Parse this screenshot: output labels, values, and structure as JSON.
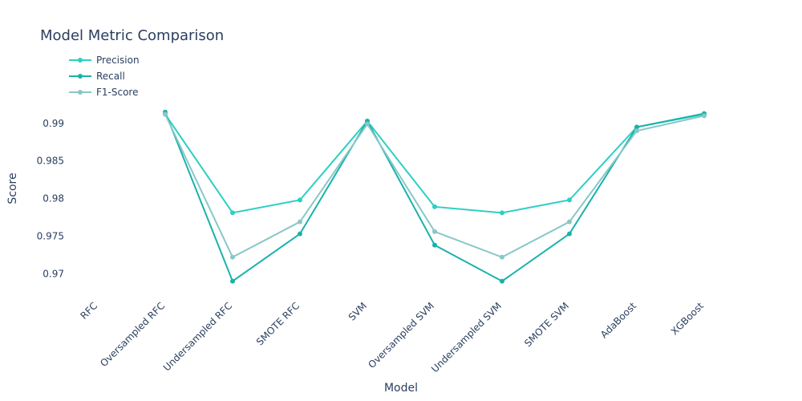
{
  "chart_data": {
    "type": "line",
    "title": "Model Metric Comparison",
    "xlabel": "Model",
    "ylabel": "Score",
    "categories": [
      "RFC",
      "Oversampled RFC",
      "Undersampled RFC",
      "SMOTE RFC",
      "SVM",
      "Oversampled SVM",
      "Undersampled SVM",
      "SMOTE SVM",
      "AdaBoost",
      "XGBoost"
    ],
    "series": [
      {
        "name": "Precision",
        "color": "#2ccfc4",
        "values": [
          null,
          0.9912,
          0.9781,
          0.9798,
          0.9903,
          0.9789,
          0.9781,
          0.9798,
          0.9895,
          0.9912
        ]
      },
      {
        "name": "Recall",
        "color": "#1ab2aa",
        "values": [
          null,
          0.9915,
          0.969,
          0.9753,
          0.9903,
          0.9738,
          0.969,
          0.9753,
          0.9895,
          0.9913
        ]
      },
      {
        "name": "F1-Score",
        "color": "#88c8c6",
        "values": [
          null,
          0.9912,
          0.9722,
          0.9769,
          0.9899,
          0.9756,
          0.9722,
          0.9769,
          0.989,
          0.991
        ]
      }
    ],
    "yticks": [
      "0.97",
      "0.975",
      "0.98",
      "0.985",
      "0.99"
    ],
    "ylim": [
      0.968,
      1.0
    ],
    "grid": false,
    "legend": "top-left"
  }
}
